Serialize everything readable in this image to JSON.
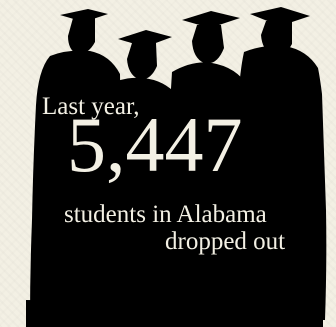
{
  "headline": {
    "line1": "Last year,",
    "number": "5,447",
    "line3": "students in Alabama",
    "line4": "dropped out"
  },
  "colors": {
    "background": "#f3f0e4",
    "silhouette": "#000000",
    "text": "#f3f0e4"
  },
  "icons": {
    "graduates": "graduates-silhouette-icon"
  }
}
